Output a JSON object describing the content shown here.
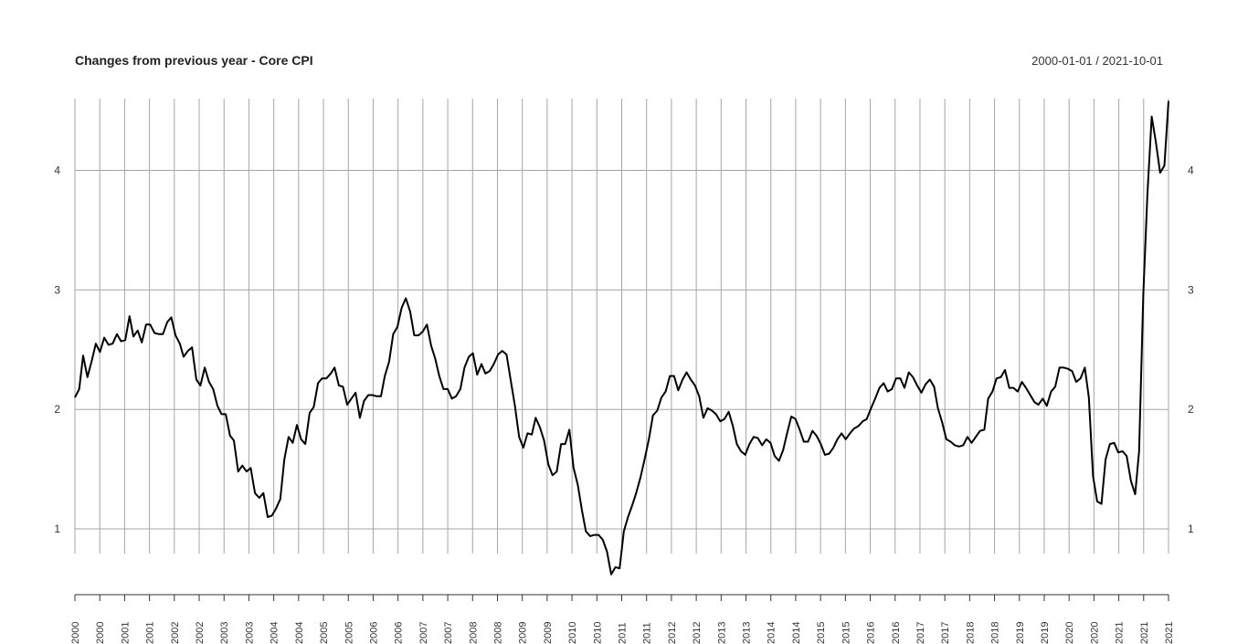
{
  "header": {
    "title": "Changes from previous year - Core CPI",
    "date_range": "2000-01-01 / 2021-10-01"
  },
  "colors": {
    "line": "#000000",
    "grid": "#a6a6a6",
    "axis": "#333333"
  },
  "chart_data": {
    "type": "line",
    "title": "Changes from previous year - Core CPI",
    "xlabel": "",
    "ylabel": "",
    "x_range": [
      "2000-01-01",
      "2021-10-01"
    ],
    "ylim": [
      0.45,
      4.6
    ],
    "y_ticks": [
      1,
      2,
      3,
      4
    ],
    "x_tick_labels": [
      "2000",
      "2000",
      "2001",
      "2001",
      "2002",
      "2002",
      "2003",
      "2003",
      "2004",
      "2004",
      "2005",
      "2005",
      "2006",
      "2006",
      "2007",
      "2007",
      "2008",
      "2008",
      "2009",
      "2009",
      "2010",
      "2010",
      "2011",
      "2011",
      "2012",
      "2012",
      "2013",
      "2013",
      "2014",
      "2014",
      "2015",
      "2015",
      "2016",
      "2016",
      "2017",
      "2017",
      "2018",
      "2018",
      "2019",
      "2019",
      "2020",
      "2020",
      "2021",
      "2021",
      "2021"
    ],
    "grid": true,
    "series": [
      {
        "values": [
          [
            "2000-01-01",
            2.1
          ],
          [
            "2000-02-01",
            2.17
          ],
          [
            "2000-03-01",
            2.45
          ],
          [
            "2000-04-01",
            2.27
          ],
          [
            "2000-05-01",
            2.4
          ],
          [
            "2000-06-01",
            2.55
          ],
          [
            "2000-07-01",
            2.48
          ],
          [
            "2000-08-01",
            2.6
          ],
          [
            "2000-09-01",
            2.54
          ],
          [
            "2000-10-01",
            2.55
          ],
          [
            "2000-11-01",
            2.63
          ],
          [
            "2000-12-01",
            2.57
          ],
          [
            "2001-01-01",
            2.58
          ],
          [
            "2001-02-01",
            2.78
          ],
          [
            "2001-03-01",
            2.61
          ],
          [
            "2001-04-01",
            2.66
          ],
          [
            "2001-05-01",
            2.56
          ],
          [
            "2001-06-01",
            2.71
          ],
          [
            "2001-07-01",
            2.71
          ],
          [
            "2001-08-01",
            2.64
          ],
          [
            "2001-09-01",
            2.63
          ],
          [
            "2001-10-01",
            2.63
          ],
          [
            "2001-11-01",
            2.73
          ],
          [
            "2001-12-01",
            2.77
          ],
          [
            "2002-01-01",
            2.62
          ],
          [
            "2002-02-01",
            2.55
          ],
          [
            "2002-03-01",
            2.44
          ],
          [
            "2002-04-01",
            2.49
          ],
          [
            "2002-05-01",
            2.52
          ],
          [
            "2002-06-01",
            2.25
          ],
          [
            "2002-07-01",
            2.2
          ],
          [
            "2002-08-01",
            2.35
          ],
          [
            "2002-09-01",
            2.23
          ],
          [
            "2002-10-01",
            2.17
          ],
          [
            "2002-11-01",
            2.03
          ],
          [
            "2002-12-01",
            1.96
          ],
          [
            "2003-01-01",
            1.96
          ],
          [
            "2003-02-01",
            1.78
          ],
          [
            "2003-03-01",
            1.74
          ],
          [
            "2003-04-01",
            1.48
          ],
          [
            "2003-05-01",
            1.53
          ],
          [
            "2003-06-01",
            1.48
          ],
          [
            "2003-07-01",
            1.51
          ],
          [
            "2003-08-01",
            1.3
          ],
          [
            "2003-09-01",
            1.26
          ],
          [
            "2003-10-01",
            1.3
          ],
          [
            "2003-11-01",
            1.1
          ],
          [
            "2003-12-01",
            1.11
          ],
          [
            "2004-01-01",
            1.17
          ],
          [
            "2004-02-01",
            1.25
          ],
          [
            "2004-03-01",
            1.58
          ],
          [
            "2004-04-01",
            1.77
          ],
          [
            "2004-05-01",
            1.72
          ],
          [
            "2004-06-01",
            1.87
          ],
          [
            "2004-07-01",
            1.75
          ],
          [
            "2004-08-01",
            1.71
          ],
          [
            "2004-09-01",
            1.97
          ],
          [
            "2004-10-01",
            2.02
          ],
          [
            "2004-11-01",
            2.22
          ],
          [
            "2004-12-01",
            2.26
          ],
          [
            "2005-01-01",
            2.26
          ],
          [
            "2005-02-01",
            2.3
          ],
          [
            "2005-03-01",
            2.35
          ],
          [
            "2005-04-01",
            2.2
          ],
          [
            "2005-05-01",
            2.19
          ],
          [
            "2005-06-01",
            2.04
          ],
          [
            "2005-07-01",
            2.09
          ],
          [
            "2005-08-01",
            2.14
          ],
          [
            "2005-09-01",
            1.93
          ],
          [
            "2005-10-01",
            2.07
          ],
          [
            "2005-11-01",
            2.12
          ],
          [
            "2005-12-01",
            2.12
          ],
          [
            "2006-01-01",
            2.11
          ],
          [
            "2006-02-01",
            2.11
          ],
          [
            "2006-03-01",
            2.28
          ],
          [
            "2006-04-01",
            2.4
          ],
          [
            "2006-05-01",
            2.63
          ],
          [
            "2006-06-01",
            2.69
          ],
          [
            "2006-07-01",
            2.85
          ],
          [
            "2006-08-01",
            2.93
          ],
          [
            "2006-09-01",
            2.82
          ],
          [
            "2006-10-01",
            2.62
          ],
          [
            "2006-11-01",
            2.62
          ],
          [
            "2006-12-01",
            2.65
          ],
          [
            "2007-01-01",
            2.71
          ],
          [
            "2007-02-01",
            2.53
          ],
          [
            "2007-03-01",
            2.43
          ],
          [
            "2007-04-01",
            2.28
          ],
          [
            "2007-05-01",
            2.17
          ],
          [
            "2007-06-01",
            2.17
          ],
          [
            "2007-07-01",
            2.09
          ],
          [
            "2007-08-01",
            2.11
          ],
          [
            "2007-09-01",
            2.17
          ],
          [
            "2007-10-01",
            2.35
          ],
          [
            "2007-11-01",
            2.44
          ],
          [
            "2007-12-01",
            2.47
          ],
          [
            "2008-01-01",
            2.29
          ],
          [
            "2008-02-01",
            2.38
          ],
          [
            "2008-03-01",
            2.3
          ],
          [
            "2008-04-01",
            2.32
          ],
          [
            "2008-05-01",
            2.38
          ],
          [
            "2008-06-01",
            2.46
          ],
          [
            "2008-07-01",
            2.49
          ],
          [
            "2008-08-01",
            2.46
          ],
          [
            "2008-09-01",
            2.24
          ],
          [
            "2008-10-01",
            2.03
          ],
          [
            "2008-11-01",
            1.77
          ],
          [
            "2008-12-01",
            1.68
          ],
          [
            "2009-01-01",
            1.8
          ],
          [
            "2009-02-01",
            1.79
          ],
          [
            "2009-03-01",
            1.93
          ],
          [
            "2009-04-01",
            1.85
          ],
          [
            "2009-05-01",
            1.74
          ],
          [
            "2009-06-01",
            1.54
          ],
          [
            "2009-07-01",
            1.45
          ],
          [
            "2009-08-01",
            1.48
          ],
          [
            "2009-09-01",
            1.71
          ],
          [
            "2009-10-01",
            1.71
          ],
          [
            "2009-11-01",
            1.83
          ],
          [
            "2009-12-01",
            1.51
          ],
          [
            "2010-01-01",
            1.37
          ],
          [
            "2010-02-01",
            1.15
          ],
          [
            "2010-03-01",
            0.98
          ],
          [
            "2010-04-01",
            0.94
          ],
          [
            "2010-05-01",
            0.95
          ],
          [
            "2010-06-01",
            0.95
          ],
          [
            "2010-07-01",
            0.91
          ],
          [
            "2010-08-01",
            0.81
          ],
          [
            "2010-09-01",
            0.62
          ],
          [
            "2010-10-01",
            0.68
          ],
          [
            "2010-11-01",
            0.67
          ],
          [
            "2010-12-01",
            0.98
          ],
          [
            "2011-01-01",
            1.1
          ],
          [
            "2011-02-01",
            1.2
          ],
          [
            "2011-03-01",
            1.3
          ],
          [
            "2011-04-01",
            1.43
          ],
          [
            "2011-05-01",
            1.58
          ],
          [
            "2011-06-01",
            1.75
          ],
          [
            "2011-07-01",
            1.95
          ],
          [
            "2011-08-01",
            1.99
          ],
          [
            "2011-09-01",
            2.1
          ],
          [
            "2011-10-01",
            2.15
          ],
          [
            "2011-11-01",
            2.28
          ],
          [
            "2011-12-01",
            2.28
          ],
          [
            "2012-01-01",
            2.16
          ],
          [
            "2012-02-01",
            2.25
          ],
          [
            "2012-03-01",
            2.31
          ],
          [
            "2012-04-01",
            2.25
          ],
          [
            "2012-05-01",
            2.2
          ],
          [
            "2012-06-01",
            2.11
          ],
          [
            "2012-07-01",
            1.93
          ],
          [
            "2012-08-01",
            2.01
          ],
          [
            "2012-09-01",
            1.99
          ],
          [
            "2012-10-01",
            1.96
          ],
          [
            "2012-11-01",
            1.9
          ],
          [
            "2012-12-01",
            1.92
          ],
          [
            "2013-01-01",
            1.98
          ],
          [
            "2013-02-01",
            1.86
          ],
          [
            "2013-03-01",
            1.71
          ],
          [
            "2013-04-01",
            1.65
          ],
          [
            "2013-05-01",
            1.62
          ],
          [
            "2013-06-01",
            1.71
          ],
          [
            "2013-07-01",
            1.77
          ],
          [
            "2013-08-01",
            1.76
          ],
          [
            "2013-09-01",
            1.7
          ],
          [
            "2013-10-01",
            1.75
          ],
          [
            "2013-11-01",
            1.72
          ],
          [
            "2013-12-01",
            1.61
          ],
          [
            "2014-01-01",
            1.57
          ],
          [
            "2014-02-01",
            1.66
          ],
          [
            "2014-03-01",
            1.8
          ],
          [
            "2014-04-01",
            1.94
          ],
          [
            "2014-05-01",
            1.92
          ],
          [
            "2014-06-01",
            1.83
          ],
          [
            "2014-07-01",
            1.73
          ],
          [
            "2014-08-01",
            1.73
          ],
          [
            "2014-09-01",
            1.82
          ],
          [
            "2014-10-01",
            1.78
          ],
          [
            "2014-11-01",
            1.71
          ],
          [
            "2014-12-01",
            1.62
          ],
          [
            "2015-01-01",
            1.63
          ],
          [
            "2015-02-01",
            1.68
          ],
          [
            "2015-03-01",
            1.75
          ],
          [
            "2015-04-01",
            1.8
          ],
          [
            "2015-05-01",
            1.75
          ],
          [
            "2015-06-01",
            1.8
          ],
          [
            "2015-07-01",
            1.84
          ],
          [
            "2015-08-01",
            1.86
          ],
          [
            "2015-09-01",
            1.9
          ],
          [
            "2015-10-01",
            1.92
          ],
          [
            "2015-11-01",
            2.01
          ],
          [
            "2015-12-01",
            2.09
          ],
          [
            "2016-01-01",
            2.18
          ],
          [
            "2016-02-01",
            2.22
          ],
          [
            "2016-03-01",
            2.15
          ],
          [
            "2016-04-01",
            2.17
          ],
          [
            "2016-05-01",
            2.26
          ],
          [
            "2016-06-01",
            2.26
          ],
          [
            "2016-07-01",
            2.18
          ],
          [
            "2016-08-01",
            2.31
          ],
          [
            "2016-09-01",
            2.27
          ],
          [
            "2016-10-01",
            2.2
          ],
          [
            "2016-11-01",
            2.14
          ],
          [
            "2016-12-01",
            2.21
          ],
          [
            "2017-01-01",
            2.25
          ],
          [
            "2017-02-01",
            2.19
          ],
          [
            "2017-03-01",
            2.01
          ],
          [
            "2017-04-01",
            1.89
          ],
          [
            "2017-05-01",
            1.75
          ],
          [
            "2017-06-01",
            1.73
          ],
          [
            "2017-07-01",
            1.7
          ],
          [
            "2017-08-01",
            1.69
          ],
          [
            "2017-09-01",
            1.7
          ],
          [
            "2017-10-01",
            1.77
          ],
          [
            "2017-11-01",
            1.72
          ],
          [
            "2017-12-01",
            1.77
          ],
          [
            "2018-01-01",
            1.82
          ],
          [
            "2018-02-01",
            1.83
          ],
          [
            "2018-03-01",
            2.09
          ],
          [
            "2018-04-01",
            2.15
          ],
          [
            "2018-05-01",
            2.26
          ],
          [
            "2018-06-01",
            2.27
          ],
          [
            "2018-07-01",
            2.33
          ],
          [
            "2018-08-01",
            2.18
          ],
          [
            "2018-09-01",
            2.18
          ],
          [
            "2018-10-01",
            2.15
          ],
          [
            "2018-11-01",
            2.23
          ],
          [
            "2018-12-01",
            2.18
          ],
          [
            "2019-01-01",
            2.12
          ],
          [
            "2019-02-01",
            2.06
          ],
          [
            "2019-03-01",
            2.04
          ],
          [
            "2019-04-01",
            2.09
          ],
          [
            "2019-05-01",
            2.03
          ],
          [
            "2019-06-01",
            2.15
          ],
          [
            "2019-07-01",
            2.19
          ],
          [
            "2019-08-01",
            2.35
          ],
          [
            "2019-09-01",
            2.35
          ],
          [
            "2019-10-01",
            2.34
          ],
          [
            "2019-11-01",
            2.32
          ],
          [
            "2019-12-01",
            2.23
          ],
          [
            "2020-01-01",
            2.26
          ],
          [
            "2020-02-01",
            2.35
          ],
          [
            "2020-03-01",
            2.1
          ],
          [
            "2020-04-01",
            1.44
          ],
          [
            "2020-05-01",
            1.23
          ],
          [
            "2020-06-01",
            1.21
          ],
          [
            "2020-07-01",
            1.58
          ],
          [
            "2020-08-01",
            1.71
          ],
          [
            "2020-09-01",
            1.72
          ],
          [
            "2020-10-01",
            1.64
          ],
          [
            "2020-11-01",
            1.65
          ],
          [
            "2020-12-01",
            1.61
          ],
          [
            "2021-01-01",
            1.4
          ],
          [
            "2021-02-01",
            1.29
          ],
          [
            "2021-03-01",
            1.65
          ],
          [
            "2021-04-01",
            2.96
          ],
          [
            "2021-05-01",
            3.8
          ],
          [
            "2021-06-01",
            4.45
          ],
          [
            "2021-07-01",
            4.24
          ],
          [
            "2021-08-01",
            3.98
          ],
          [
            "2021-09-01",
            4.04
          ],
          [
            "2021-10-01",
            4.58
          ]
        ]
      }
    ]
  }
}
